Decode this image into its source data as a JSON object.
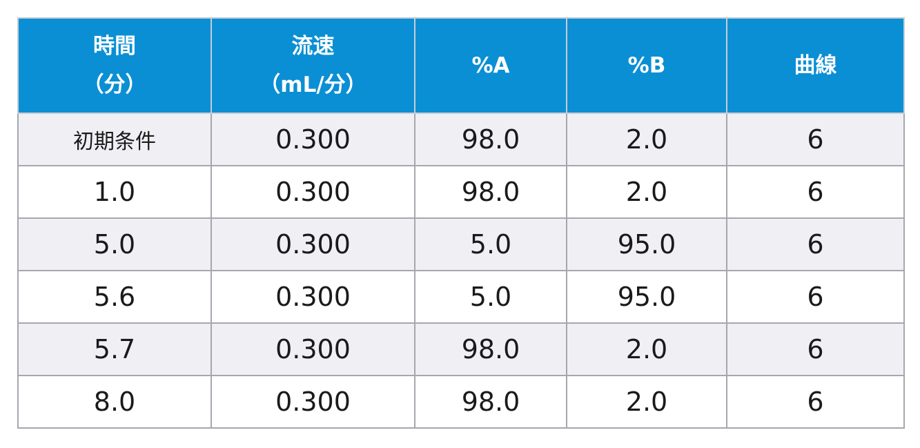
{
  "table": {
    "header": [
      [
        "時間",
        "（分）"
      ],
      [
        "流速",
        "（mL/分）"
      ],
      [
        "%A"
      ],
      [
        "%B"
      ],
      [
        "曲線"
      ]
    ],
    "rows": [
      [
        "初期条件",
        "0.300",
        "98.0",
        "2.0",
        "6"
      ],
      [
        "1.0",
        "0.300",
        "98.0",
        "2.0",
        "6"
      ],
      [
        "5.0",
        "0.300",
        "5.0",
        "95.0",
        "6"
      ],
      [
        "5.6",
        "0.300",
        "5.0",
        "95.0",
        "6"
      ],
      [
        "5.7",
        "0.300",
        "98.0",
        "2.0",
        "6"
      ],
      [
        "8.0",
        "0.300",
        "98.0",
        "2.0",
        "6"
      ]
    ]
  }
}
